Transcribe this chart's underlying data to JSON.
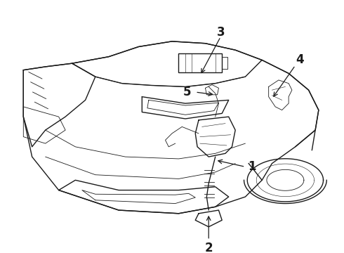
{
  "background_color": "#ffffff",
  "line_color": "#1a1a1a",
  "figure_width": 4.9,
  "figure_height": 3.6,
  "dpi": 100,
  "label_fontsize": 12,
  "label_fontweight": "bold",
  "lw_main": 1.0,
  "lw_detail": 0.6,
  "lw_thin": 0.4
}
